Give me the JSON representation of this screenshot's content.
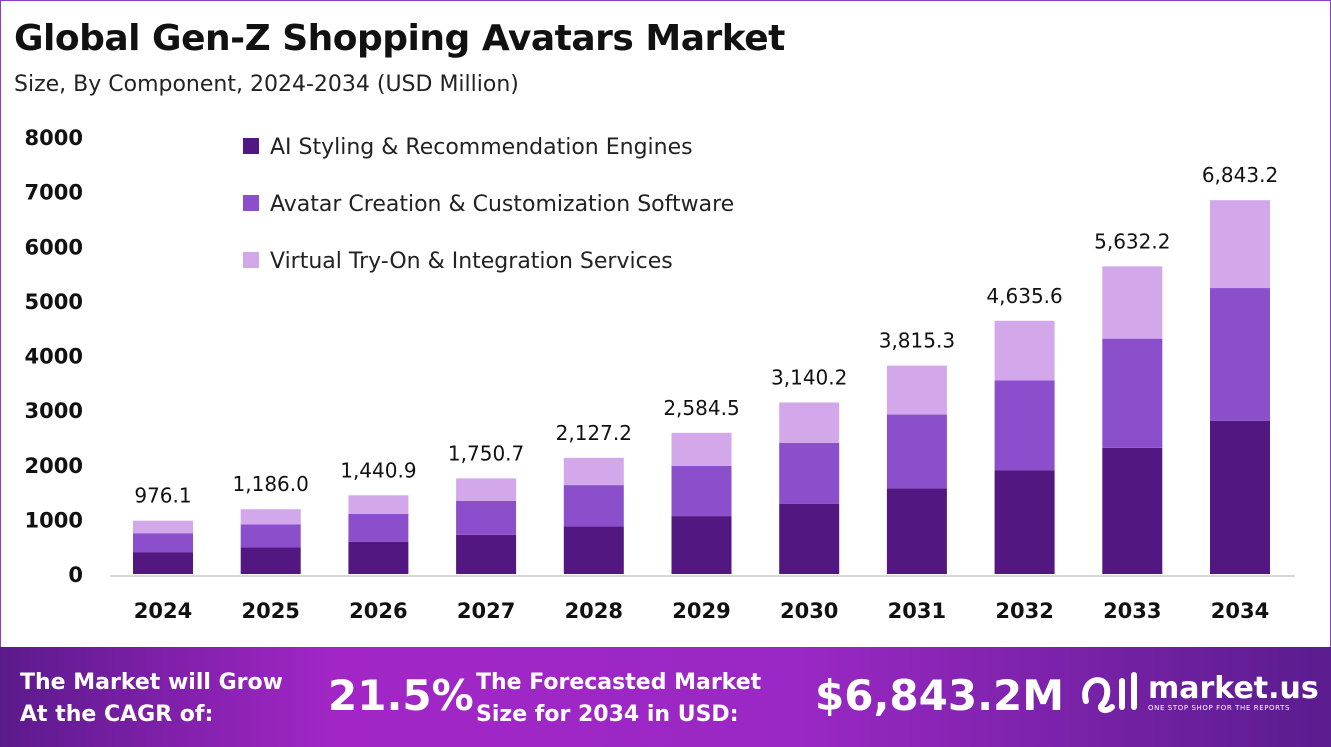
{
  "chart_data": {
    "type": "bar",
    "stacked": true,
    "title": "Global Gen-Z Shopping Avatars Market",
    "subtitle": "Size, By Component, 2024-2034 (USD Million)",
    "categories": [
      "2024",
      "2025",
      "2026",
      "2027",
      "2028",
      "2029",
      "2030",
      "2031",
      "2032",
      "2033",
      "2034"
    ],
    "series": [
      {
        "name": "AI Styling & Recommendation Engines",
        "color": "#521780",
        "values": [
          400.2,
          486.3,
          590.8,
          717.8,
          872.2,
          1059.6,
          1287.5,
          1564.3,
          1900.6,
          2309.2,
          2805.7
        ]
      },
      {
        "name": "Avatar Creation & Customization Software",
        "color": "#8b4fcb",
        "values": [
          346.5,
          421.0,
          511.5,
          621.5,
          755.2,
          917.5,
          1114.8,
          1354.4,
          1645.6,
          1999.4,
          2429.3
        ]
      },
      {
        "name": "Virtual Try-On & Integration Services",
        "color": "#d3a8ea",
        "values": [
          229.4,
          278.7,
          338.6,
          411.4,
          499.8,
          607.4,
          737.9,
          896.6,
          1089.4,
          1323.6,
          1608.2
        ]
      }
    ],
    "totals": [
      976.1,
      1186.0,
      1440.9,
      1750.7,
      2127.2,
      2584.5,
      3140.2,
      3815.3,
      4635.6,
      5632.2,
      6843.2
    ],
    "total_labels": [
      "976.1",
      "1,186.0",
      "1,440.9",
      "1,750.7",
      "2,127.2",
      "2,584.5",
      "3,140.2",
      "3,815.3",
      "4,635.6",
      "5,632.2",
      "6,843.2"
    ],
    "yticks": [
      0,
      1000,
      2000,
      3000,
      4000,
      5000,
      6000,
      7000,
      8000
    ],
    "ylim": [
      0,
      8000
    ],
    "xlabel": "",
    "ylabel": "",
    "grid": false,
    "legend_placement": "top-left"
  },
  "footer": {
    "cagr_label_line1": "The Market will Grow",
    "cagr_label_line2": "At the CAGR of:",
    "cagr_value": "21.5%",
    "forecast_label_line1": "The Forecasted Market",
    "forecast_label_line2": "Size for 2034 in USD:",
    "forecast_value": "$6,843.2M",
    "logo_text": "market.us",
    "logo_tagline": "ONE STOP SHOP FOR THE REPORTS"
  }
}
